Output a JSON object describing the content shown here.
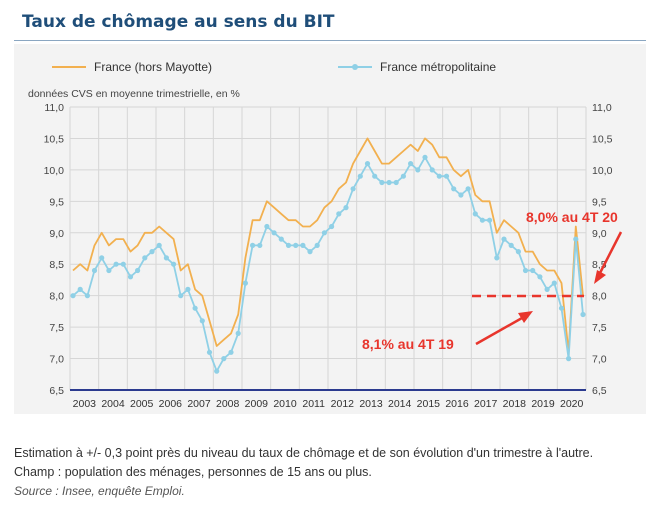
{
  "title": "Taux de chômage au sens du BIT",
  "colors": {
    "series1": "#f2b04f",
    "series2": "#8fd0e6",
    "annotation": "#e8352c",
    "axis": "#2b3a8f"
  },
  "chart_data": {
    "type": "line",
    "ylabel": "données CVS en moyenne trimestrielle, en %",
    "ylim": [
      6.5,
      11.0
    ],
    "yticks": [
      "6,5",
      "7,0",
      "7,5",
      "8,0",
      "8,5",
      "9,0",
      "9,5",
      "10,0",
      "10,5",
      "11,0"
    ],
    "years": [
      "2003",
      "2004",
      "2005",
      "2006",
      "2007",
      "2008",
      "2009",
      "2010",
      "2011",
      "2012",
      "2013",
      "2014",
      "2015",
      "2016",
      "2017",
      "2018",
      "2019",
      "2020"
    ],
    "grid": true,
    "legend": "top",
    "series": [
      {
        "name": "France (hors Mayotte)",
        "values": [
          8.4,
          8.5,
          8.4,
          8.8,
          9.0,
          8.8,
          8.9,
          8.9,
          8.7,
          8.8,
          9.0,
          9.0,
          9.1,
          9.0,
          8.9,
          8.4,
          8.5,
          8.1,
          8.0,
          7.6,
          7.2,
          7.3,
          7.4,
          7.7,
          8.6,
          9.2,
          9.2,
          9.5,
          9.4,
          9.3,
          9.2,
          9.2,
          9.1,
          9.1,
          9.2,
          9.4,
          9.5,
          9.7,
          9.8,
          10.1,
          10.3,
          10.5,
          10.3,
          10.1,
          10.1,
          10.2,
          10.3,
          10.4,
          10.3,
          10.5,
          10.4,
          10.2,
          10.2,
          10.0,
          9.9,
          10.0,
          9.6,
          9.5,
          9.5,
          9.0,
          9.2,
          9.1,
          9.0,
          8.7,
          8.7,
          8.5,
          8.4,
          8.4,
          8.2,
          7.1,
          9.1,
          8.0
        ]
      },
      {
        "name": "France métropolitaine",
        "values": [
          8.0,
          8.1,
          8.0,
          8.4,
          8.6,
          8.4,
          8.5,
          8.5,
          8.3,
          8.4,
          8.6,
          8.7,
          8.8,
          8.6,
          8.5,
          8.0,
          8.1,
          7.8,
          7.6,
          7.1,
          6.8,
          7.0,
          7.1,
          7.4,
          8.2,
          8.8,
          8.8,
          9.1,
          9.0,
          8.9,
          8.8,
          8.8,
          8.8,
          8.7,
          8.8,
          9.0,
          9.1,
          9.3,
          9.4,
          9.7,
          9.9,
          10.1,
          9.9,
          9.8,
          9.8,
          9.8,
          9.9,
          10.1,
          10.0,
          10.2,
          10.0,
          9.9,
          9.9,
          9.7,
          9.6,
          9.7,
          9.3,
          9.2,
          9.2,
          8.6,
          8.9,
          8.8,
          8.7,
          8.4,
          8.4,
          8.3,
          8.1,
          8.2,
          7.8,
          7.0,
          8.9,
          7.7
        ]
      }
    ],
    "reference_line": 8.0,
    "annotations": [
      "8,0% au 4T 20",
      "8,1% au 4T 19"
    ]
  },
  "notes": {
    "line1": "Estimation à +/- 0,3 point près du niveau du taux de chômage et de son évolution d'un trimestre à l'autre.",
    "line2": "Champ : population des ménages, personnes de 15 ans ou plus.",
    "source": "Source : Insee, enquête Emploi."
  }
}
